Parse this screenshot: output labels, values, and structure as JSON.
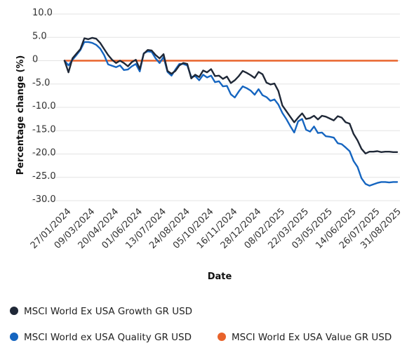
{
  "chart_data": {
    "type": "line",
    "xlabel": "Date",
    "ylabel": "Percentage change (%)",
    "ylim": [
      -30,
      10
    ],
    "y_ticks": [
      "10.0",
      "5.0",
      "0",
      "-5.0",
      "-10.0",
      "-15.0",
      "-20.0",
      "-25.0",
      "-30.0"
    ],
    "y_tick_values": [
      10,
      5,
      0,
      -5,
      -10,
      -15,
      -20,
      -25,
      -30
    ],
    "x_ticks": [
      "27/01/2024",
      "09/03/2024",
      "20/04/2024",
      "01/06/2024",
      "13/07/2024",
      "24/08/2024",
      "05/10/2024",
      "16/11/2024",
      "28/12/2024",
      "08/02/2025",
      "22/03/2025",
      "03/05/2025",
      "14/06/2025",
      "26/07/2025",
      "31/08/2025"
    ],
    "grid": "horizontal",
    "legend_position": "bottom",
    "series": [
      {
        "name": "MSCI World Ex USA Growth GR USD",
        "color": "#1f2837",
        "x": [
          "2024-01-20",
          "2024-01-27",
          "2024-02-03",
          "2024-02-10",
          "2024-02-17",
          "2024-02-24",
          "2024-03-02",
          "2024-03-09",
          "2024-03-16",
          "2024-03-23",
          "2024-03-30",
          "2024-04-06",
          "2024-04-13",
          "2024-04-20",
          "2024-04-27",
          "2024-05-04",
          "2024-05-11",
          "2024-05-18",
          "2024-05-25",
          "2024-06-01",
          "2024-06-08",
          "2024-06-15",
          "2024-06-22",
          "2024-06-29",
          "2024-07-06",
          "2024-07-13",
          "2024-07-20",
          "2024-07-27",
          "2024-08-03",
          "2024-08-10",
          "2024-08-17",
          "2024-08-24",
          "2024-08-31",
          "2024-09-07",
          "2024-09-14",
          "2024-09-21",
          "2024-09-28",
          "2024-10-05",
          "2024-10-12",
          "2024-10-19",
          "2024-10-26",
          "2024-11-02",
          "2024-11-09",
          "2024-11-16",
          "2024-11-23",
          "2024-11-30",
          "2024-12-07",
          "2024-12-14",
          "2024-12-21",
          "2024-12-28",
          "2025-01-04",
          "2025-01-11",
          "2025-01-18",
          "2025-01-25",
          "2025-02-01",
          "2025-02-08",
          "2025-02-15",
          "2025-02-22",
          "2025-03-01",
          "2025-03-08",
          "2025-03-15",
          "2025-03-22",
          "2025-03-29",
          "2025-04-05",
          "2025-04-12",
          "2025-04-19",
          "2025-04-26",
          "2025-05-03",
          "2025-05-10",
          "2025-05-17",
          "2025-05-24",
          "2025-05-31",
          "2025-06-07",
          "2025-06-14",
          "2025-06-21",
          "2025-06-28",
          "2025-07-05",
          "2025-07-12",
          "2025-07-19",
          "2025-07-26",
          "2025-08-02",
          "2025-08-09",
          "2025-08-16",
          "2025-08-23",
          "2025-08-30"
        ],
        "values": [
          0,
          -2.5,
          0.5,
          1.5,
          2.5,
          4.8,
          4.6,
          4.9,
          4.7,
          3.8,
          2.5,
          1.2,
          0.2,
          -0.5,
          0,
          -0.5,
          -1.2,
          -0.3,
          0.2,
          -1.8,
          1.5,
          2.3,
          2.2,
          1.2,
          0.5,
          1.4,
          -2.2,
          -2.8,
          -2.2,
          -1,
          -0.5,
          -0.7,
          -3.8,
          -3,
          -3.5,
          -2.1,
          -2.5,
          -1.8,
          -3.3,
          -3.2,
          -3.9,
          -3.4,
          -4.8,
          -4.2,
          -3.3,
          -2.2,
          -2.6,
          -3.1,
          -3.7,
          -2.4,
          -2.9,
          -4.7,
          -5.1,
          -4.9,
          -6.5,
          -9.6,
          -10.8,
          -12,
          -13.2,
          -12.2,
          -11.3,
          -12.5,
          -12.3,
          -11.8,
          -12.6,
          -11.8,
          -12,
          -12.4,
          -12.8,
          -11.9,
          -12.2,
          -13.2,
          -13.5,
          -15.7,
          -17.1,
          -18.9,
          -19.9,
          -19.5,
          -19.5,
          -19.4,
          -19.6,
          -19.5,
          -19.5,
          -19.6,
          -19.6
        ]
      },
      {
        "name": "MSCI World ex USA Quality GR USD",
        "color": "#1565c0",
        "x": [
          "2024-01-20",
          "2024-01-27",
          "2024-02-03",
          "2024-02-10",
          "2024-02-17",
          "2024-02-24",
          "2024-03-02",
          "2024-03-09",
          "2024-03-16",
          "2024-03-23",
          "2024-03-30",
          "2024-04-06",
          "2024-04-13",
          "2024-04-20",
          "2024-04-27",
          "2024-05-04",
          "2024-05-11",
          "2024-05-18",
          "2024-05-25",
          "2024-06-01",
          "2024-06-08",
          "2024-06-15",
          "2024-06-22",
          "2024-06-29",
          "2024-07-06",
          "2024-07-13",
          "2024-07-20",
          "2024-07-27",
          "2024-08-03",
          "2024-08-10",
          "2024-08-17",
          "2024-08-24",
          "2024-08-31",
          "2024-09-07",
          "2024-09-14",
          "2024-09-21",
          "2024-09-28",
          "2024-10-05",
          "2024-10-12",
          "2024-10-19",
          "2024-10-26",
          "2024-11-02",
          "2024-11-09",
          "2024-11-16",
          "2024-11-23",
          "2024-11-30",
          "2024-12-07",
          "2024-12-14",
          "2024-12-21",
          "2024-12-28",
          "2025-01-04",
          "2025-01-11",
          "2025-01-18",
          "2025-01-25",
          "2025-02-01",
          "2025-02-08",
          "2025-02-15",
          "2025-02-22",
          "2025-03-01",
          "2025-03-08",
          "2025-03-15",
          "2025-03-22",
          "2025-03-29",
          "2025-04-05",
          "2025-04-12",
          "2025-04-19",
          "2025-04-26",
          "2025-05-03",
          "2025-05-10",
          "2025-05-17",
          "2025-05-24",
          "2025-05-31",
          "2025-06-07",
          "2025-06-14",
          "2025-06-21",
          "2025-06-28",
          "2025-07-05",
          "2025-07-12",
          "2025-07-19",
          "2025-07-26",
          "2025-08-02",
          "2025-08-09",
          "2025-08-16",
          "2025-08-23",
          "2025-08-30"
        ],
        "values": [
          0,
          -1,
          0.2,
          1.2,
          2.3,
          4,
          4,
          3.8,
          3.4,
          2.6,
          1.2,
          -0.8,
          -1.1,
          -1.4,
          -1,
          -2,
          -1.9,
          -1.2,
          -0.7,
          -2.3,
          1.6,
          2,
          1.9,
          0.5,
          -0.5,
          0.8,
          -2.4,
          -3.2,
          -1.9,
          -0.7,
          -0.7,
          -1,
          -3.5,
          -3.3,
          -4.2,
          -3,
          -3.6,
          -3.2,
          -4.6,
          -4.4,
          -5.5,
          -5.4,
          -7.2,
          -7.9,
          -6.6,
          -5.5,
          -5.9,
          -6.4,
          -7.3,
          -6.1,
          -7.4,
          -7.8,
          -8.6,
          -8.3,
          -9.4,
          -11.2,
          -12.5,
          -14,
          -15.4,
          -13,
          -12.5,
          -14.8,
          -15.2,
          -14.1,
          -15.5,
          -15.4,
          -16.2,
          -16.3,
          -16.5,
          -17.7,
          -17.9,
          -18.6,
          -19.4,
          -21.5,
          -22.8,
          -25.2,
          -26.4,
          -26.8,
          -26.5,
          -26.2,
          -26,
          -26,
          -26.1,
          -26,
          -26
        ]
      },
      {
        "name": "MSCI World Ex USA Value GR USD",
        "color": "#e8632b",
        "x": [
          "2024-01-20",
          "2025-08-30"
        ],
        "values": [
          0,
          0
        ]
      }
    ]
  }
}
